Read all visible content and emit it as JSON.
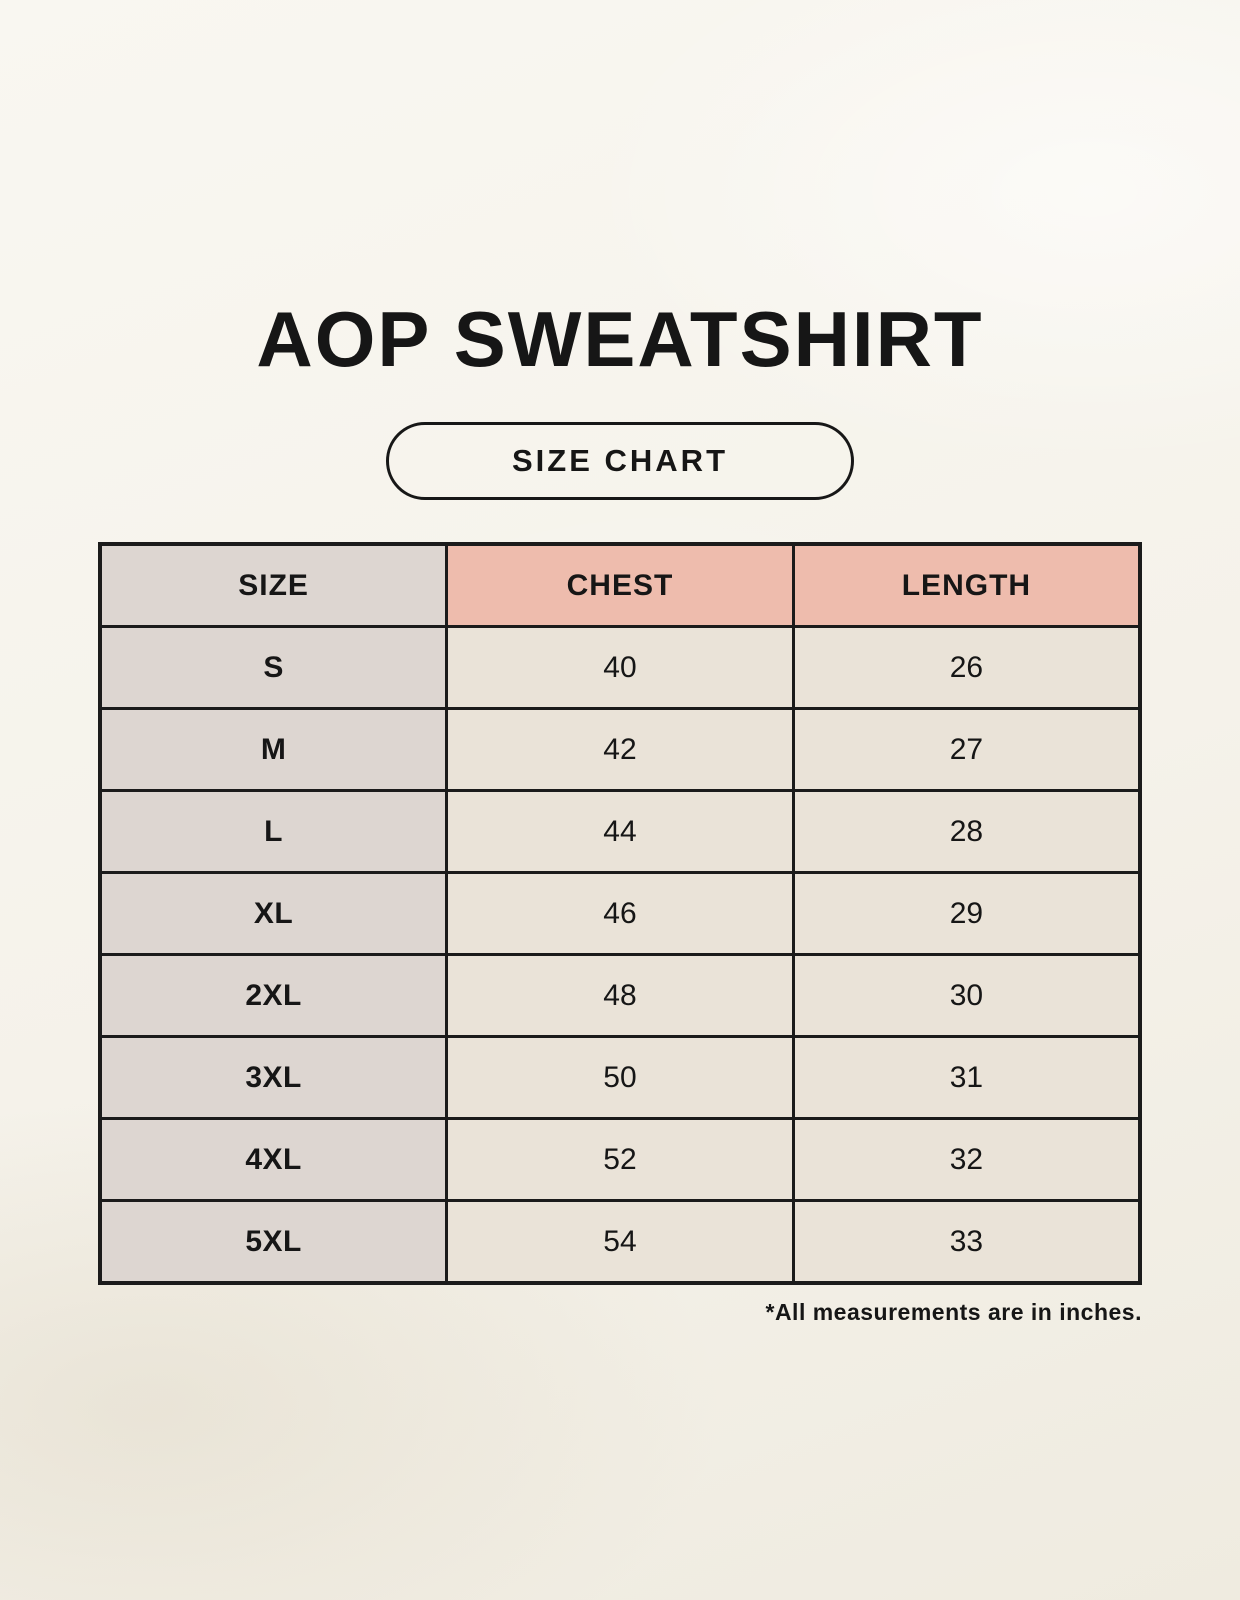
{
  "page": {
    "title": "AOP SWEATSHIRT",
    "badge": "SIZE CHART",
    "footnote": "*All measurements are in inches."
  },
  "chart_data": {
    "type": "table",
    "title": "AOP SWEATSHIRT",
    "subtitle": "SIZE CHART",
    "columns": [
      "SIZE",
      "CHEST",
      "LENGTH"
    ],
    "rows": [
      [
        "S",
        40,
        26
      ],
      [
        "M",
        42,
        27
      ],
      [
        "L",
        44,
        28
      ],
      [
        "XL",
        46,
        29
      ],
      [
        "2XL",
        48,
        30
      ],
      [
        "3XL",
        50,
        31
      ],
      [
        "4XL",
        52,
        32
      ],
      [
        "5XL",
        54,
        33
      ]
    ],
    "note": "*All measurements are in inches.",
    "units": "inches"
  },
  "colors": {
    "background": "#f5f2ea",
    "size_column_bg": "#ddd6d1",
    "header_pink_bg": "#eebcad",
    "value_cell_bg": "#eae3d8",
    "border": "#1b1b1b",
    "text": "#161616"
  }
}
